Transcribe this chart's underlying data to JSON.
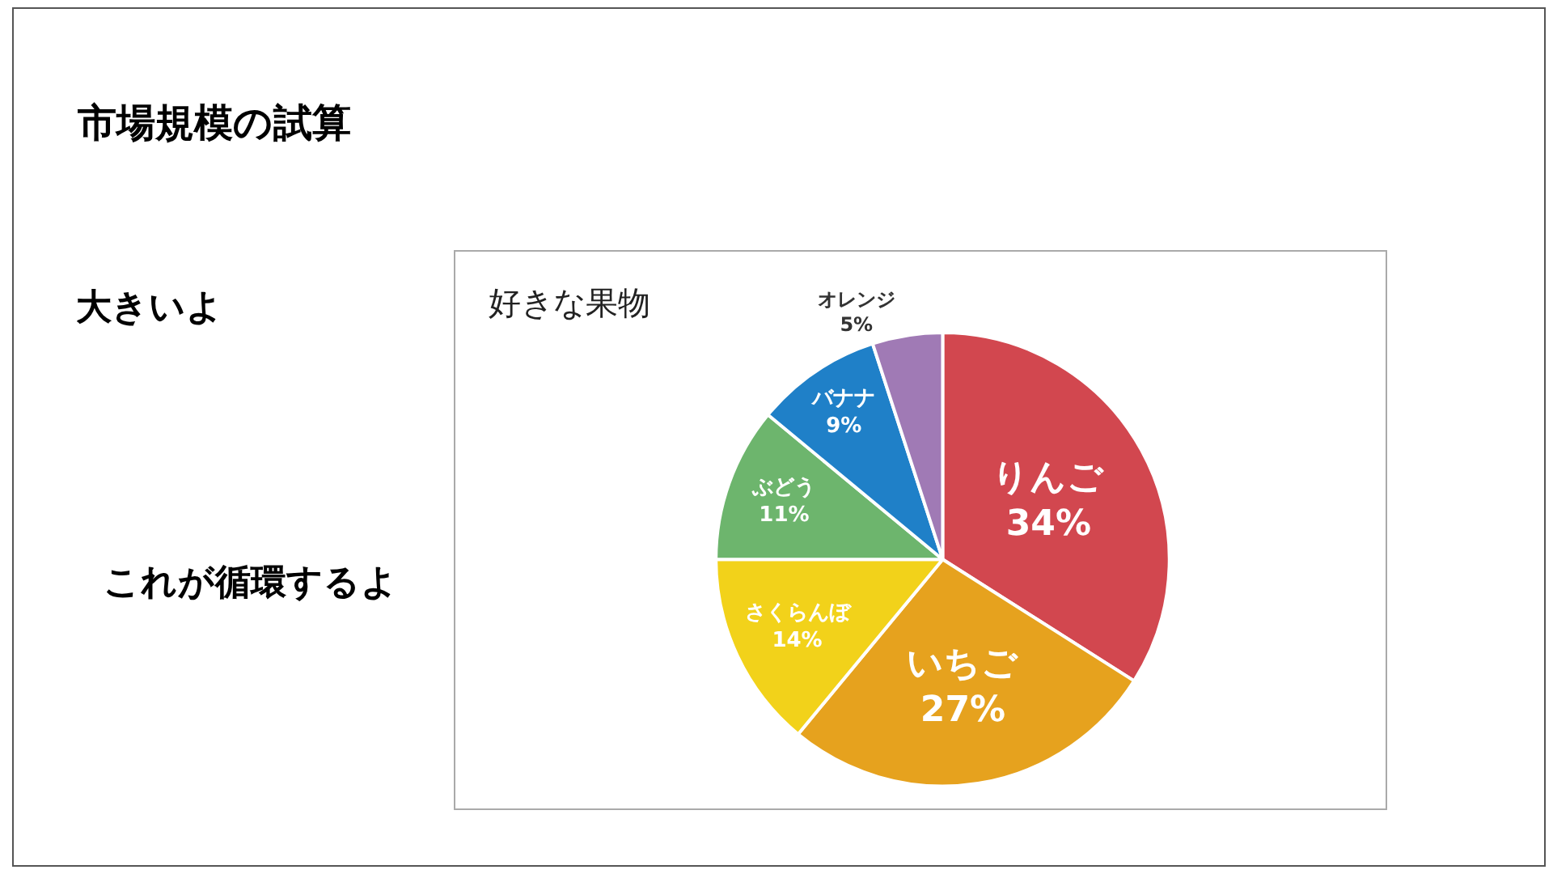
{
  "chart_data": {
    "type": "pie",
    "title": "好きな果物",
    "annotations": [
      "市場規模の試算",
      "大きいよ",
      "これが循環するよ"
    ],
    "categories": [
      "りんご",
      "いちご",
      "さくらんぼ",
      "ぶどう",
      "バナナ",
      "オレンジ"
    ],
    "values": [
      34,
      27,
      14,
      11,
      9,
      5
    ],
    "value_labels": [
      "34%",
      "27%",
      "14%",
      "11%",
      "9%",
      "5%"
    ],
    "colors": [
      "#d2474f",
      "#e6a21e",
      "#f2d21a",
      "#6db56d",
      "#1f80c8",
      "#a07ab5"
    ],
    "legend": false
  }
}
